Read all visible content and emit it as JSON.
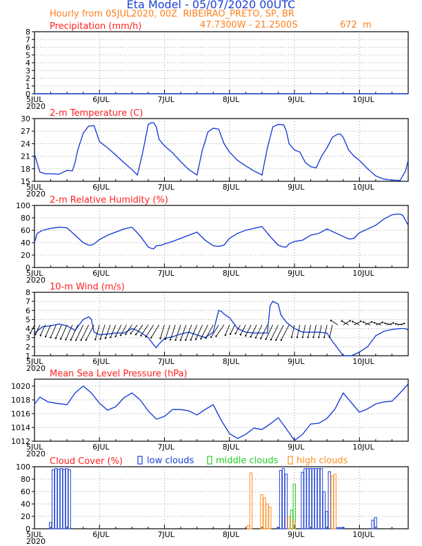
{
  "header": {
    "title": "Eta Model - 05/07/2020 00UTC",
    "subtitle": "Hourly from 05JUL2020, 00Z  RIBEIRAO_PRETO, SP, BR",
    "coords": "47.7300W - 21.2500S",
    "elevation": "672  m"
  },
  "colors": {
    "title": "#1a3fd6",
    "orange": "#ff7f1a",
    "red": "#ff2020",
    "line": "#1a3fd6",
    "low": "#1a3fd6",
    "middle": "#22cc22",
    "high": "#ff8c1a"
  },
  "x_axis": {
    "days": [
      "5JUL",
      "6JUL",
      "7JUL",
      "8JUL",
      "9JUL",
      "10JUL"
    ],
    "year": "2020"
  },
  "chart_data": [
    {
      "id": "precip",
      "type": "line",
      "title": "Precipitation (mm/h)",
      "ylim": [
        0,
        8
      ],
      "yticks": [
        0,
        1,
        2,
        3,
        4,
        5,
        6,
        7,
        8
      ],
      "x": [
        0,
        138
      ],
      "values": [
        0,
        0
      ]
    },
    {
      "id": "temp",
      "type": "line",
      "title": "2-m Temperature (C)",
      "ylim": [
        15,
        30
      ],
      "yticks": [
        15,
        18,
        21,
        24,
        27,
        30
      ],
      "x": [
        0,
        2,
        4,
        6,
        9,
        12,
        14,
        15,
        16,
        18,
        20,
        22,
        24,
        27,
        30,
        33,
        36,
        38,
        40,
        42,
        43,
        44,
        45,
        46,
        48,
        51,
        54,
        57,
        60,
        62,
        63,
        64,
        66,
        68,
        70,
        72,
        75,
        78,
        81,
        84,
        86,
        88,
        90,
        92,
        93,
        94,
        96,
        98,
        100,
        102,
        104,
        106,
        108,
        110,
        112,
        113,
        114,
        116,
        118,
        120,
        123,
        126,
        129,
        132,
        135,
        137,
        138
      ],
      "values": [
        21.5,
        17.2,
        16.8,
        16.8,
        16.7,
        17.6,
        17.5,
        19.5,
        22.5,
        26.5,
        28.2,
        28.3,
        24.5,
        23.0,
        21.3,
        19.5,
        17.8,
        16.5,
        22.0,
        28.6,
        29.0,
        29.0,
        28.0,
        25.0,
        23.5,
        21.8,
        19.7,
        17.8,
        16.5,
        22.5,
        24.5,
        26.8,
        27.7,
        27.5,
        24.0,
        22.0,
        20.0,
        18.7,
        17.5,
        16.5,
        23.0,
        28.0,
        28.6,
        28.5,
        27.0,
        24.0,
        22.5,
        22.0,
        19.5,
        18.5,
        18.2,
        21.0,
        23.0,
        25.5,
        26.3,
        26.3,
        25.5,
        22.5,
        21.0,
        20.0,
        18.0,
        16.3,
        15.5,
        15.3,
        15.2,
        17.5,
        20.0
      ]
    },
    {
      "id": "rh",
      "type": "line",
      "title": "2-m Relative Humidity (%)",
      "ylim": [
        0,
        100
      ],
      "yticks": [
        0,
        20,
        40,
        60,
        80,
        100
      ],
      "x": [
        0,
        1,
        3,
        6,
        9,
        12,
        15,
        18,
        20,
        21,
        22,
        24,
        27,
        30,
        33,
        36,
        39,
        42,
        43,
        44,
        45,
        47,
        48,
        51,
        54,
        57,
        60,
        63,
        66,
        68,
        70,
        72,
        75,
        78,
        81,
        84,
        87,
        90,
        92,
        93,
        94,
        96,
        99,
        102,
        105,
        108,
        111,
        114,
        116,
        117,
        118,
        120,
        123,
        126,
        129,
        132,
        134,
        135,
        136,
        138
      ],
      "values": [
        40,
        55,
        60,
        63,
        65,
        64,
        52,
        40,
        36,
        36,
        38,
        45,
        52,
        57,
        62,
        65,
        51,
        33,
        31,
        30,
        35,
        36,
        38,
        42,
        47,
        52,
        57,
        44,
        35,
        34,
        36,
        47,
        55,
        60,
        63,
        66,
        50,
        36,
        33,
        33,
        38,
        42,
        44,
        52,
        55,
        62,
        56,
        50,
        46,
        46,
        47,
        56,
        62,
        68,
        78,
        85,
        86,
        86,
        84,
        68
      ]
    },
    {
      "id": "wind",
      "type": "line",
      "title": "10-m Wind (m/s)",
      "ylim": [
        1,
        8
      ],
      "yticks": [
        1,
        2,
        3,
        4,
        5,
        6,
        7,
        8
      ],
      "x": [
        0,
        3,
        6,
        9,
        12,
        15,
        18,
        20,
        21,
        22,
        24,
        27,
        30,
        33,
        36,
        37,
        39,
        42,
        44,
        45,
        46,
        48,
        51,
        54,
        57,
        60,
        63,
        66,
        68,
        69,
        70,
        72,
        75,
        78,
        81,
        84,
        86,
        87,
        88,
        90,
        91,
        93,
        96,
        99,
        102,
        105,
        108,
        110,
        111,
        112,
        114,
        117,
        120,
        123,
        126,
        129,
        132,
        135,
        137,
        138
      ],
      "values": [
        3.5,
        4.2,
        4.3,
        4.5,
        4.3,
        3.8,
        5.0,
        5.3,
        5.0,
        3.6,
        3.3,
        3.4,
        3.5,
        3.5,
        4.0,
        3.9,
        3.6,
        3.0,
        2.2,
        1.9,
        2.3,
        2.9,
        3.1,
        3.4,
        3.6,
        3.3,
        3.0,
        3.6,
        6.0,
        5.9,
        5.6,
        5.2,
        4.0,
        3.6,
        3.5,
        3.5,
        3.5,
        6.5,
        7.0,
        6.7,
        5.5,
        4.7,
        4.0,
        3.6,
        3.6,
        3.6,
        3.5,
        2.6,
        2.2,
        1.8,
        1.0,
        1.0,
        1.4,
        2.0,
        3.2,
        3.7,
        3.9,
        4.0,
        4.0,
        3.8
      ]
    },
    {
      "id": "mslp",
      "type": "line",
      "title": "Mean Sea Level Pressure (hPa)",
      "ylim": [
        1012,
        1021
      ],
      "yticks": [
        1012,
        1014,
        1016,
        1018,
        1020
      ],
      "x": [
        0,
        2,
        5,
        8,
        12,
        15,
        18,
        21,
        24,
        27,
        30,
        33,
        36,
        39,
        42,
        45,
        48,
        51,
        54,
        57,
        60,
        63,
        66,
        69,
        72,
        75,
        78,
        81,
        84,
        87,
        90,
        93,
        96,
        99,
        102,
        105,
        108,
        111,
        114,
        117,
        120,
        123,
        126,
        129,
        132,
        135,
        138
      ],
      "values": [
        1017.4,
        1018.4,
        1017.7,
        1017.5,
        1017.3,
        1019.0,
        1020.0,
        1019.0,
        1017.5,
        1016.5,
        1017.0,
        1018.3,
        1019.0,
        1018.0,
        1016.4,
        1015.2,
        1015.6,
        1016.6,
        1016.6,
        1016.4,
        1015.8,
        1016.6,
        1017.3,
        1015.0,
        1013.1,
        1012.4,
        1013.0,
        1013.9,
        1013.7,
        1014.5,
        1015.4,
        1013.8,
        1012.1,
        1013.0,
        1014.5,
        1014.6,
        1015.3,
        1016.7,
        1019.0,
        1017.6,
        1016.2,
        1016.7,
        1017.4,
        1017.7,
        1017.8,
        1019.0,
        1020.3
      ]
    },
    {
      "id": "clouds",
      "type": "bar",
      "title": "Cloud Cover (%)",
      "ylim": [
        0,
        100
      ],
      "yticks": [
        0,
        20,
        40,
        60,
        80,
        100
      ],
      "series": [
        {
          "name": "low clouds",
          "x": [
            6,
            7,
            8,
            9,
            10,
            11,
            12,
            13,
            90,
            91,
            92,
            93,
            99,
            100,
            101,
            102,
            103,
            104,
            105,
            106,
            107,
            108,
            109,
            112,
            113,
            114,
            125,
            126
          ],
          "values": [
            10,
            95,
            97,
            96,
            97,
            96,
            97,
            95,
            2,
            94,
            97,
            88,
            91,
            97,
            97,
            97,
            97,
            97,
            97,
            97,
            60,
            28,
            92,
            2,
            2,
            2,
            14,
            18
          ]
        },
        {
          "name": "middle clouds",
          "x": [
            95,
            96
          ],
          "values": [
            30,
            72
          ]
        },
        {
          "name": "high clouds",
          "x": [
            79,
            80,
            84,
            85,
            86,
            87,
            94,
            96,
            110,
            111
          ],
          "values": [
            5,
            90,
            55,
            50,
            40,
            35,
            20,
            12,
            85,
            88
          ]
        }
      ]
    }
  ]
}
